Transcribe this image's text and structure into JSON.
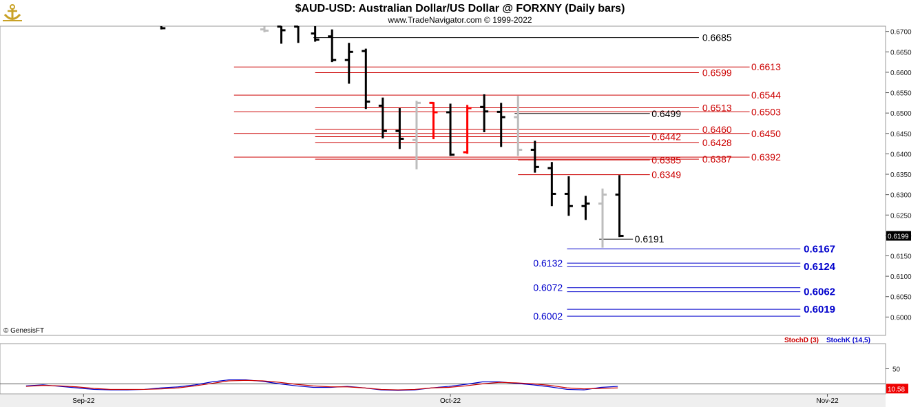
{
  "header": {
    "title": "$AUD-USD:  Australian Dollar/US Dollar @ FORXNY  (Daily bars)",
    "subtitle": "www.TradeNavigator.com © 1999-2022",
    "logo_icon": "anchor-logo-icon"
  },
  "watermark": "© GenesisFT",
  "colors": {
    "bar_black": "#000000",
    "bar_red": "#ff0000",
    "bar_gray": "#bdbdbd",
    "level_black": "#000000",
    "level_red": "#cc0000",
    "level_blue": "#0000cc",
    "stoch_d": "#cc0000",
    "stoch_k": "#0000cc",
    "last_price_bg": "#000000",
    "stoch_value_bg": "#ee0000"
  },
  "chart_data": {
    "type": "ohlc",
    "price_axis": {
      "ylim": [
        0.5955,
        0.6713
      ],
      "ticks": [
        "0.6700",
        "0.6650",
        "0.6600",
        "0.6550",
        "0.6500",
        "0.6450",
        "0.6400",
        "0.6350",
        "0.6300",
        "0.6250",
        "0.6200",
        "0.6150",
        "0.6100",
        "0.6050",
        "0.6000"
      ],
      "last_price_label": "0.6199"
    },
    "x_axis": {
      "labels": [
        {
          "text": "Sep-22",
          "index": 4.4
        },
        {
          "text": "Oct-22",
          "index": 26.1
        },
        {
          "text": "Nov-22",
          "index": 48.4
        }
      ],
      "count": 50
    },
    "bars": [
      {
        "i": 9.0,
        "o": 0.6717,
        "h": 0.6722,
        "l": 0.6705,
        "c": 0.6708,
        "color": "black"
      },
      {
        "i": 15.1,
        "o": 0.6705,
        "h": 0.6712,
        "l": 0.6698,
        "c": 0.6702,
        "color": "gray"
      },
      {
        "i": 16.1,
        "o": 0.6712,
        "h": 0.6718,
        "l": 0.667,
        "c": 0.6703,
        "color": "black"
      },
      {
        "i": 17.1,
        "o": 0.6712,
        "h": 0.672,
        "l": 0.6672,
        "c": 0.6715,
        "color": "black"
      },
      {
        "i": 18.1,
        "o": 0.6695,
        "h": 0.6718,
        "l": 0.6675,
        "c": 0.668,
        "color": "black"
      },
      {
        "i": 19.1,
        "o": 0.6688,
        "h": 0.6705,
        "l": 0.6625,
        "c": 0.663,
        "color": "black"
      },
      {
        "i": 20.1,
        "o": 0.663,
        "h": 0.6672,
        "l": 0.6572,
        "c": 0.665,
        "color": "black"
      },
      {
        "i": 21.1,
        "o": 0.6652,
        "h": 0.6658,
        "l": 0.651,
        "c": 0.6528,
        "color": "black"
      },
      {
        "i": 22.1,
        "o": 0.6518,
        "h": 0.6538,
        "l": 0.6438,
        "c": 0.6456,
        "color": "black"
      },
      {
        "i": 23.1,
        "o": 0.6456,
        "h": 0.6512,
        "l": 0.6412,
        "c": 0.6437,
        "color": "black"
      },
      {
        "i": 24.1,
        "o": 0.6434,
        "h": 0.653,
        "l": 0.6362,
        "c": 0.6525,
        "color": "gray"
      },
      {
        "i": 25.1,
        "o": 0.6525,
        "h": 0.6527,
        "l": 0.6436,
        "c": 0.6502,
        "color": "red"
      },
      {
        "i": 26.1,
        "o": 0.6502,
        "h": 0.6523,
        "l": 0.6395,
        "c": 0.6398,
        "color": "black"
      },
      {
        "i": 27.1,
        "o": 0.6404,
        "h": 0.652,
        "l": 0.64,
        "c": 0.6512,
        "color": "red"
      },
      {
        "i": 28.1,
        "o": 0.6515,
        "h": 0.6546,
        "l": 0.6453,
        "c": 0.6504,
        "color": "black"
      },
      {
        "i": 29.1,
        "o": 0.6503,
        "h": 0.6525,
        "l": 0.6417,
        "c": 0.649,
        "color": "black"
      },
      {
        "i": 30.1,
        "o": 0.649,
        "h": 0.6542,
        "l": 0.6395,
        "c": 0.641,
        "color": "gray"
      },
      {
        "i": 31.1,
        "o": 0.641,
        "h": 0.6432,
        "l": 0.6354,
        "c": 0.6368,
        "color": "black"
      },
      {
        "i": 32.1,
        "o": 0.6365,
        "h": 0.638,
        "l": 0.6272,
        "c": 0.6302,
        "color": "black"
      },
      {
        "i": 33.1,
        "o": 0.6302,
        "h": 0.6345,
        "l": 0.6248,
        "c": 0.6272,
        "color": "black"
      },
      {
        "i": 34.1,
        "o": 0.6272,
        "h": 0.6297,
        "l": 0.6238,
        "c": 0.6278,
        "color": "black"
      },
      {
        "i": 35.1,
        "o": 0.6278,
        "h": 0.6315,
        "l": 0.617,
        "c": 0.63,
        "color": "gray"
      },
      {
        "i": 36.1,
        "o": 0.63,
        "h": 0.6348,
        "l": 0.6196,
        "c": 0.6199,
        "color": "black"
      }
    ],
    "levels": [
      {
        "label": "0.6685",
        "value": 0.6685,
        "color": "black",
        "i0": 18.0,
        "i1": 40.8,
        "label_i": 41.0,
        "bold": false
      },
      {
        "label": "0.6613",
        "value": 0.6613,
        "color": "red",
        "i0": 13.3,
        "i1": 43.8,
        "label_i": 43.9,
        "bold": false
      },
      {
        "label": "0.6599",
        "value": 0.6599,
        "color": "red",
        "i0": 18.1,
        "i1": 40.8,
        "label_i": 41.0,
        "bold": false
      },
      {
        "label": "0.6544",
        "value": 0.6544,
        "color": "red",
        "i0": 13.3,
        "i1": 43.8,
        "label_i": 43.9,
        "bold": false
      },
      {
        "label": "0.6513",
        "value": 0.6513,
        "color": "red",
        "i0": 18.1,
        "i1": 40.8,
        "label_i": 41.0,
        "bold": false
      },
      {
        "label": "0.6503",
        "value": 0.6503,
        "color": "red",
        "i0": 13.3,
        "i1": 43.8,
        "label_i": 43.9,
        "bold": false
      },
      {
        "label": "0.6499",
        "value": 0.6499,
        "color": "black",
        "i0": 29.9,
        "i1": 37.9,
        "label_i": 38.0,
        "bold": false
      },
      {
        "label": "0.6460",
        "value": 0.646,
        "color": "red",
        "i0": 18.1,
        "i1": 40.8,
        "label_i": 41.0,
        "bold": false
      },
      {
        "label": "0.6450",
        "value": 0.645,
        "color": "red",
        "i0": 13.3,
        "i1": 43.8,
        "label_i": 43.9,
        "bold": false
      },
      {
        "label": "0.6442",
        "value": 0.6442,
        "color": "red",
        "i0": 18.1,
        "i1": 37.9,
        "label_i": 38.0,
        "bold": false
      },
      {
        "label": "0.6428",
        "value": 0.6428,
        "color": "red",
        "i0": 18.1,
        "i1": 40.8,
        "label_i": 41.0,
        "bold": false
      },
      {
        "label": "0.6392",
        "value": 0.6392,
        "color": "red",
        "i0": 13.3,
        "i1": 43.8,
        "label_i": 43.9,
        "bold": false
      },
      {
        "label": "0.6387",
        "value": 0.6387,
        "color": "red",
        "i0": 18.1,
        "i1": 40.8,
        "label_i": 41.0,
        "bold": false
      },
      {
        "label": "0.6385",
        "value": 0.6385,
        "color": "red",
        "i0": 30.1,
        "i1": 37.9,
        "label_i": 38.0,
        "bold": false
      },
      {
        "label": "0.6349",
        "value": 0.6349,
        "color": "red",
        "i0": 30.1,
        "i1": 37.9,
        "label_i": 38.0,
        "bold": false
      },
      {
        "label": "0.6191",
        "value": 0.6191,
        "color": "black",
        "i0": 34.9,
        "i1": 36.9,
        "label_i": 37.0,
        "bold": false
      },
      {
        "label": "0.6167",
        "value": 0.6167,
        "color": "blue",
        "i0": 33.0,
        "i1": 46.8,
        "label_i": 47.0,
        "bold": true
      },
      {
        "label": "0.6132",
        "value": 0.6132,
        "color": "blue",
        "i0": 33.0,
        "i1": 46.8,
        "label_i": 31.0,
        "bold": false
      },
      {
        "label": "0.6124",
        "value": 0.6124,
        "color": "blue",
        "i0": 33.0,
        "i1": 46.8,
        "label_i": 47.0,
        "bold": true
      },
      {
        "label": "0.6072",
        "value": 0.6072,
        "color": "blue",
        "i0": 33.0,
        "i1": 46.8,
        "label_i": 31.0,
        "bold": false
      },
      {
        "label": "0.6062",
        "value": 0.6062,
        "color": "blue",
        "i0": 33.0,
        "i1": 46.8,
        "label_i": 47.0,
        "bold": true
      },
      {
        "label": "0.6019",
        "value": 0.6019,
        "color": "blue",
        "i0": 33.0,
        "i1": 46.8,
        "label_i": 47.0,
        "bold": true
      },
      {
        "label": "0.6002",
        "value": 0.6002,
        "color": "blue",
        "i0": 33.0,
        "i1": 46.8,
        "label_i": 31.0,
        "bold": false
      }
    ],
    "stochastic": {
      "ylim": [
        0,
        100
      ],
      "tick_label": "50",
      "tick_value": 50,
      "reference_level": 20,
      "value_label": "10.58",
      "legend": [
        "StochD (3)",
        "StochK (14,5)"
      ],
      "stoch_d": [
        [
          1,
          15
        ],
        [
          2,
          17
        ],
        [
          3,
          16
        ],
        [
          4,
          14
        ],
        [
          5,
          11
        ],
        [
          6,
          9
        ],
        [
          7,
          9
        ],
        [
          8,
          9
        ],
        [
          9,
          10
        ],
        [
          10,
          12
        ],
        [
          11,
          16
        ],
        [
          12,
          21
        ],
        [
          13,
          26
        ],
        [
          14,
          27
        ],
        [
          15,
          26
        ],
        [
          16,
          23
        ],
        [
          17,
          19
        ],
        [
          18,
          16
        ],
        [
          19,
          14
        ],
        [
          20,
          14
        ],
        [
          21,
          12
        ],
        [
          22,
          9
        ],
        [
          23,
          8
        ],
        [
          24,
          9
        ],
        [
          25,
          12
        ],
        [
          26,
          13
        ],
        [
          27,
          16
        ],
        [
          28,
          20
        ],
        [
          29,
          23
        ],
        [
          30,
          22
        ],
        [
          31,
          20
        ],
        [
          32,
          17
        ],
        [
          33,
          12
        ],
        [
          34,
          10
        ],
        [
          35,
          11
        ],
        [
          36,
          12
        ]
      ],
      "stoch_k": [
        [
          1,
          16
        ],
        [
          2,
          18
        ],
        [
          3,
          15
        ],
        [
          4,
          12
        ],
        [
          5,
          9
        ],
        [
          6,
          8
        ],
        [
          7,
          8
        ],
        [
          8,
          9
        ],
        [
          9,
          12
        ],
        [
          10,
          14
        ],
        [
          11,
          18
        ],
        [
          12,
          24
        ],
        [
          13,
          28
        ],
        [
          14,
          28
        ],
        [
          15,
          25
        ],
        [
          16,
          20
        ],
        [
          17,
          16
        ],
        [
          18,
          13
        ],
        [
          19,
          13
        ],
        [
          20,
          15
        ],
        [
          21,
          12
        ],
        [
          22,
          8
        ],
        [
          23,
          7
        ],
        [
          24,
          8
        ],
        [
          25,
          12
        ],
        [
          26,
          15
        ],
        [
          27,
          19
        ],
        [
          28,
          24
        ],
        [
          29,
          24
        ],
        [
          30,
          21
        ],
        [
          31,
          18
        ],
        [
          32,
          14
        ],
        [
          33,
          9
        ],
        [
          34,
          8
        ],
        [
          35,
          13
        ],
        [
          36,
          15
        ]
      ]
    }
  }
}
